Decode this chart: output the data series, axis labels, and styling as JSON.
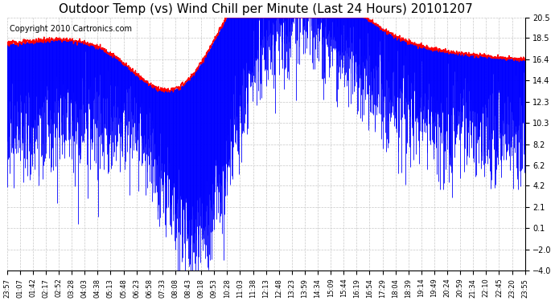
{
  "title": "Outdoor Temp (vs) Wind Chill per Minute (Last 24 Hours) 20101207",
  "copyright": "Copyright 2010 Cartronics.com",
  "yticks": [
    20.5,
    18.5,
    16.4,
    14.4,
    12.3,
    10.3,
    8.2,
    6.2,
    4.2,
    2.1,
    0.1,
    -2.0,
    -4.0
  ],
  "ylim": [
    -4.0,
    20.5
  ],
  "x_labels": [
    "23:57",
    "01:07",
    "01:42",
    "02:17",
    "02:52",
    "03:28",
    "04:03",
    "04:38",
    "05:13",
    "05:48",
    "06:23",
    "06:58",
    "07:33",
    "08:08",
    "08:43",
    "09:18",
    "09:53",
    "10:28",
    "11:03",
    "11:38",
    "12:13",
    "12:48",
    "13:23",
    "13:59",
    "14:34",
    "15:09",
    "15:44",
    "16:19",
    "16:54",
    "17:29",
    "18:04",
    "18:39",
    "19:14",
    "19:49",
    "20:24",
    "20:59",
    "21:34",
    "22:10",
    "22:45",
    "23:20",
    "23:55"
  ],
  "n_points": 1440,
  "outdoor_color": "#ff0000",
  "windchill_color": "#0000ff",
  "background_color": "#ffffff",
  "grid_color": "#c8c8c8",
  "title_fontsize": 11,
  "copyright_fontsize": 7
}
